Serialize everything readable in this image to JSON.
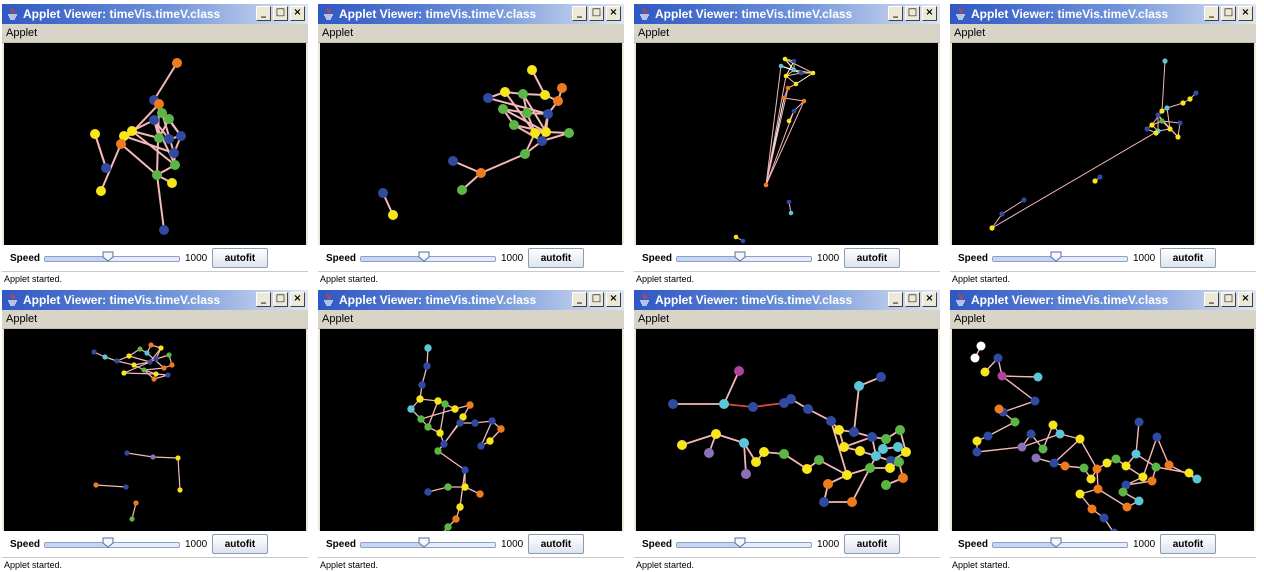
{
  "windows": [
    {
      "title": "Applet Viewer: timeVis.timeV.class",
      "menu": "Applet",
      "speed_label": "Speed",
      "speed_value": "1000",
      "speed_level": 0.48,
      "autofit_label": "autofit",
      "status": "Applet started."
    },
    {
      "title": "Applet Viewer: timeVis.timeV.class",
      "menu": "Applet",
      "speed_label": "Speed",
      "speed_value": "1000",
      "speed_level": 0.48,
      "autofit_label": "autofit",
      "status": "Applet started."
    },
    {
      "title": "Applet Viewer: timeVis.timeV.class",
      "menu": "Applet",
      "speed_label": "Speed",
      "speed_value": "1000",
      "speed_level": 0.48,
      "autofit_label": "autofit",
      "status": "Applet started."
    },
    {
      "title": "Applet Viewer: timeVis.timeV.class",
      "menu": "Applet",
      "speed_label": "Speed",
      "speed_value": "1000",
      "speed_level": 0.48,
      "autofit_label": "autofit",
      "status": "Applet started."
    },
    {
      "title": "Applet Viewer: timeVis.timeV.class",
      "menu": "Applet",
      "speed_label": "Speed",
      "speed_value": "1000",
      "speed_level": 0.48,
      "autofit_label": "autofit",
      "status": "Applet started."
    },
    {
      "title": "Applet Viewer: timeVis.timeV.class",
      "menu": "Applet",
      "speed_label": "Speed",
      "speed_value": "1000",
      "speed_level": 0.48,
      "autofit_label": "autofit",
      "status": "Applet started."
    },
    {
      "title": "Applet Viewer: timeVis.timeV.class",
      "menu": "Applet",
      "speed_label": "Speed",
      "speed_value": "1000",
      "speed_level": 0.48,
      "autofit_label": "autofit",
      "status": "Applet started."
    },
    {
      "title": "Applet Viewer: timeVis.timeV.class",
      "menu": "Applet",
      "speed_label": "Speed",
      "speed_value": "1000",
      "speed_level": 0.48,
      "autofit_label": "autofit",
      "status": "Applet started."
    }
  ],
  "icons": {
    "app": "java-icon",
    "minimize": "minimize-icon",
    "maximize": "maximize-icon",
    "close": "close-icon"
  },
  "colors": {
    "title_start": "#2f58c4",
    "canvas": "#000000",
    "edge": "#f4b8b8",
    "node_orange": "#f07a1e",
    "node_yellow": "#f6e61a",
    "node_green": "#5bb646",
    "node_blue": "#2f4aa0",
    "node_cyan": "#5cc6d8",
    "node_purple": "#8a72b8",
    "node_magenta": "#b0439a",
    "node_white": "#ffffff"
  }
}
